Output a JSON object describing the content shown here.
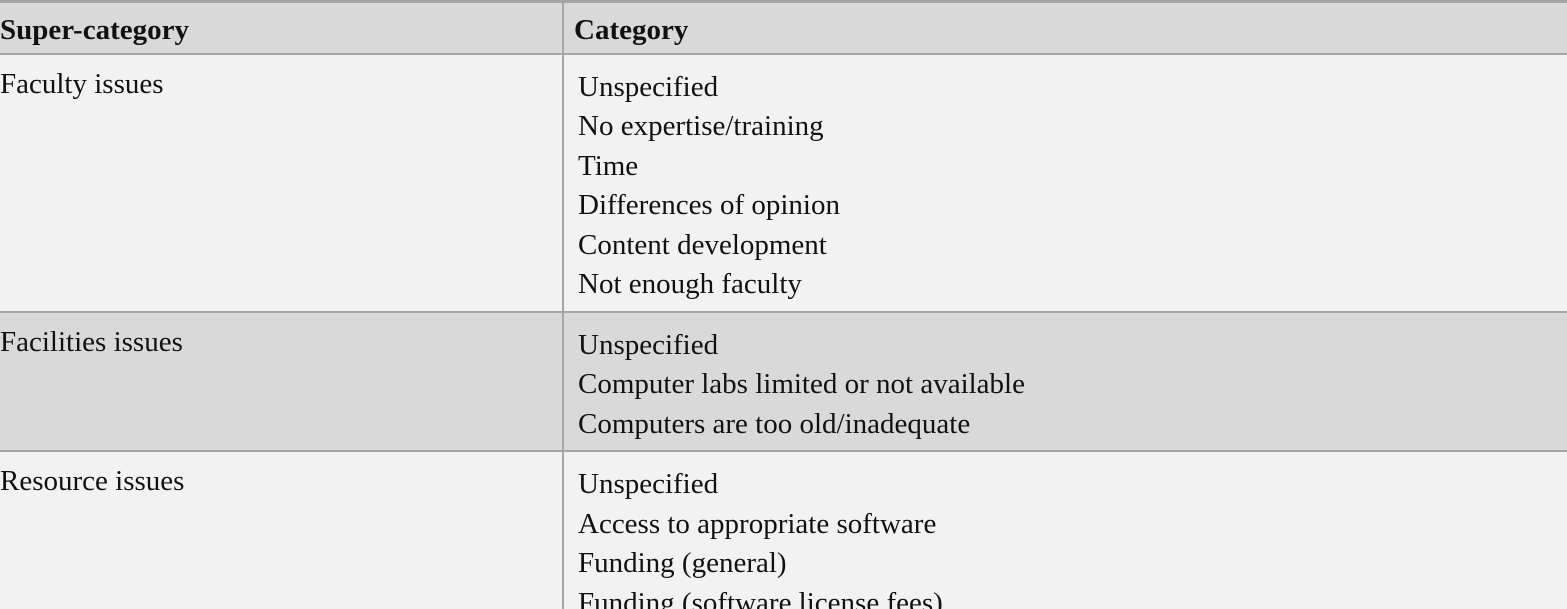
{
  "table": {
    "headers": [
      "Super-category",
      "Category"
    ],
    "rows": [
      {
        "super": "Faculty issues",
        "categories": [
          "Unspecified",
          "No expertise/training",
          "Time",
          "Differences of opinion",
          "Content development",
          "Not enough faculty"
        ]
      },
      {
        "super": "Facilities issues",
        "categories": [
          "Unspecified",
          "Computer labs limited or not available",
          "Computers are too old/inadequate"
        ]
      },
      {
        "super": "Resource issues",
        "categories": [
          "Unspecified",
          "Access to appropriate software",
          "Funding (general)",
          "Funding (software license fees)"
        ]
      }
    ]
  }
}
